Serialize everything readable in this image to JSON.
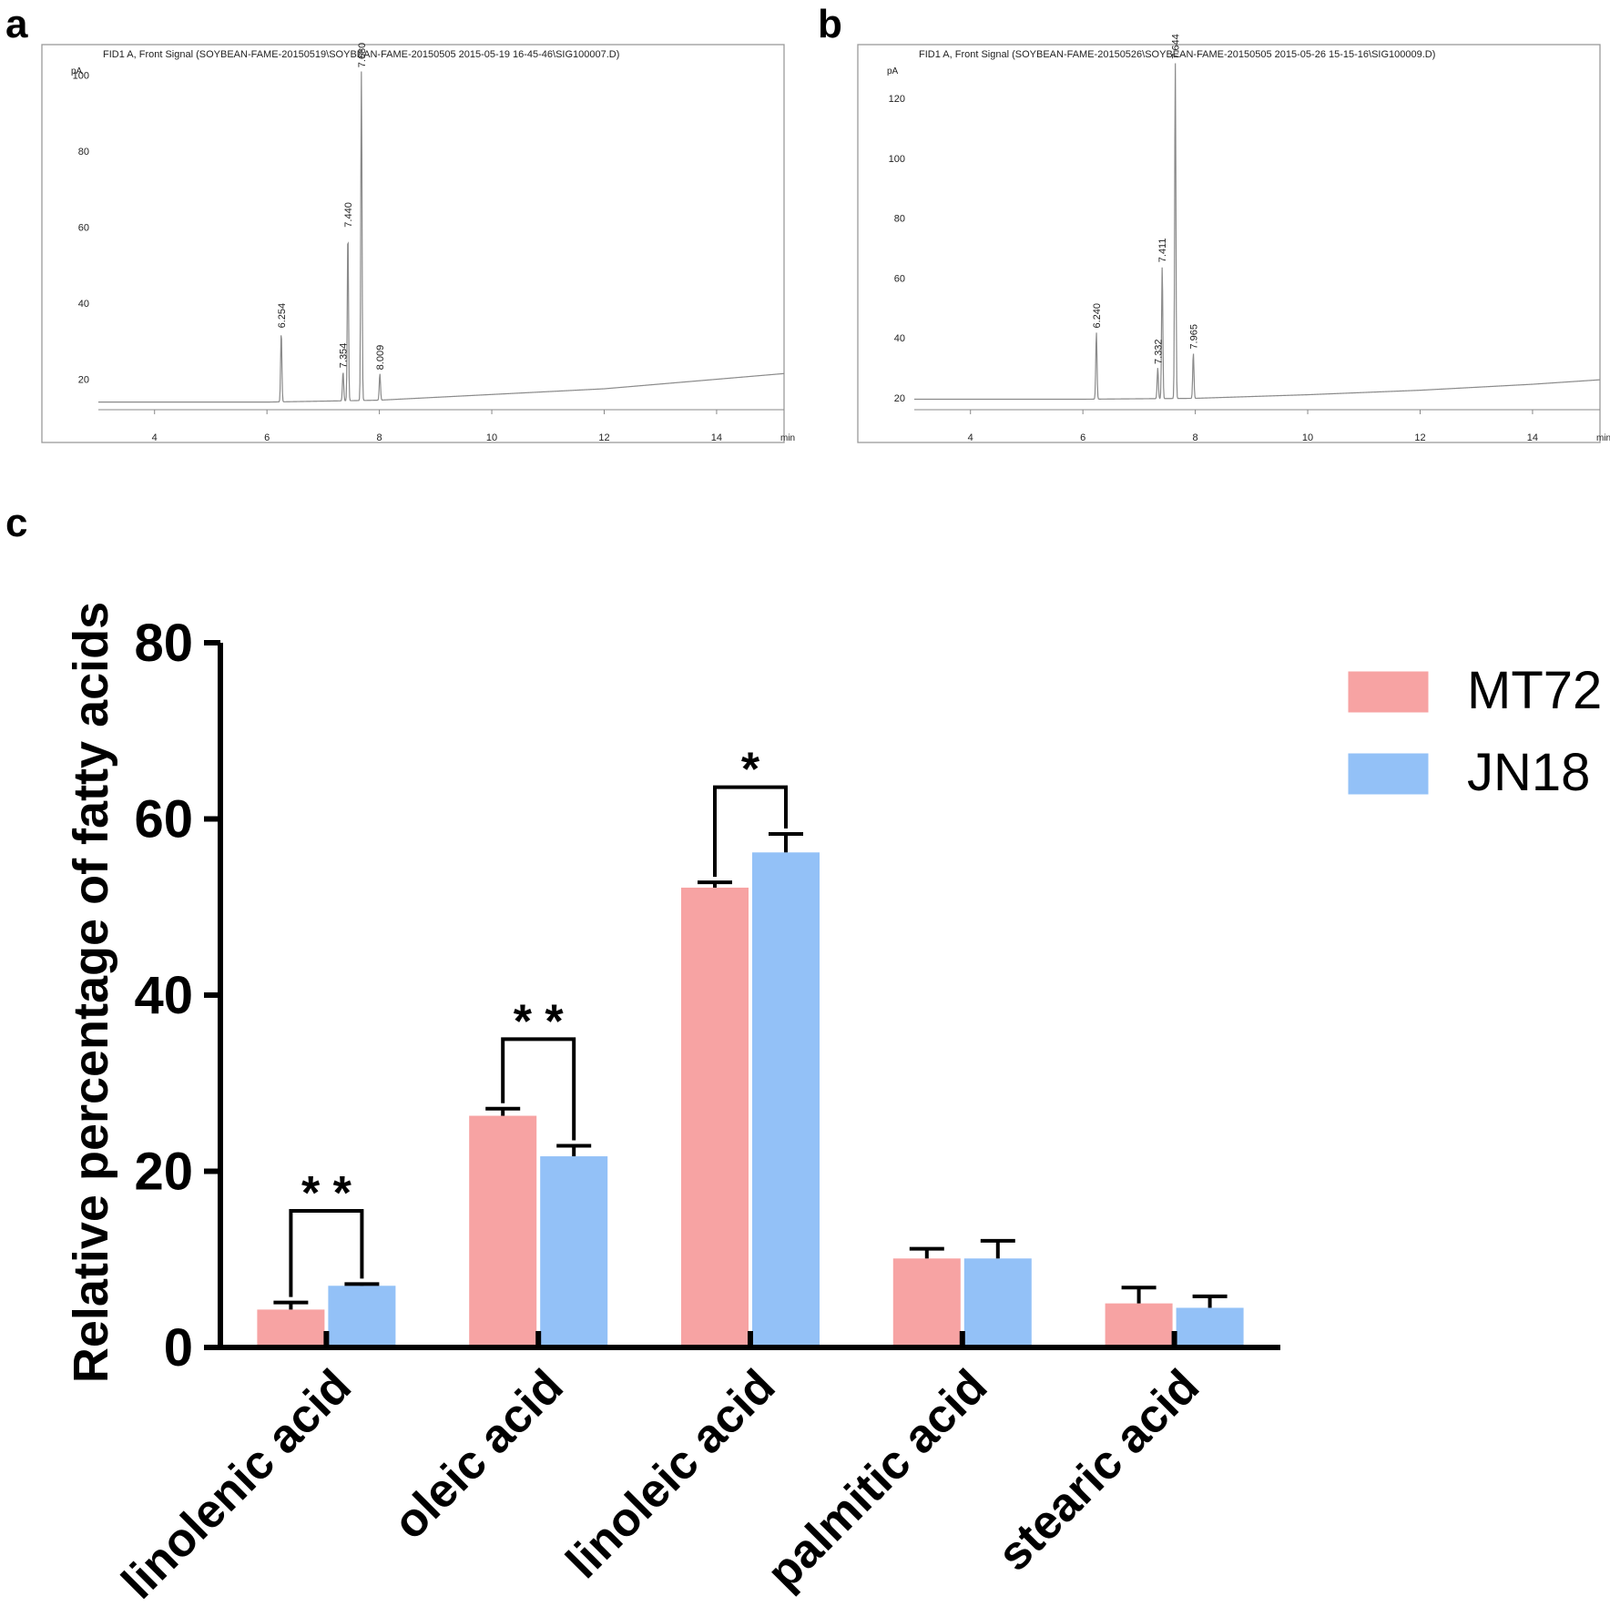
{
  "panels": {
    "a": "a",
    "b": "b",
    "c": "c"
  },
  "chart_data": [
    {
      "type": "line",
      "panel": "a",
      "title": "FID1 A, Front Signal (SOYBEAN-FAME-20150519\\SOYBEAN-FAME-20150505 2015-05-19 16-45-46\\SIG100007.D)",
      "xlabel": "min",
      "ylabel": "pA",
      "xlim": [
        3,
        15.2
      ],
      "ylim": [
        12,
        108
      ],
      "xticks": [
        4,
        6,
        8,
        10,
        12,
        14
      ],
      "yticks": [
        20,
        40,
        60,
        80,
        100
      ],
      "baseline": {
        "x": [
          3,
          6,
          8,
          10,
          12,
          14,
          15.2
        ],
        "y": [
          14,
          14,
          14.5,
          16,
          17.5,
          20,
          21.5
        ]
      },
      "peaks": [
        {
          "label": "6.254",
          "x": 6.254,
          "y": 32.5
        },
        {
          "label": "7.354",
          "x": 7.354,
          "y": 22
        },
        {
          "label": "7.440",
          "x": 7.44,
          "y": 59
        },
        {
          "label": "7.680",
          "x": 7.68,
          "y": 101
        },
        {
          "label": "8.009",
          "x": 8.009,
          "y": 21.5
        }
      ]
    },
    {
      "type": "line",
      "panel": "b",
      "title": "FID1 A, Front Signal (SOYBEAN-FAME-20150526\\SOYBEAN-FAME-20150505 2015-05-26 15-15-16\\SIG100009.D)",
      "xlabel": "min",
      "ylabel": "pA",
      "xlim": [
        3,
        15.2
      ],
      "ylim": [
        16,
        138
      ],
      "xticks": [
        4,
        6,
        8,
        10,
        12,
        14
      ],
      "yticks": [
        20,
        40,
        60,
        80,
        100,
        120
      ],
      "baseline": {
        "x": [
          3,
          6,
          8,
          10,
          12,
          14,
          15.2
        ],
        "y": [
          19.5,
          19.5,
          19.8,
          21,
          22.5,
          24.5,
          26
        ]
      },
      "peaks": [
        {
          "label": "6.240",
          "x": 6.24,
          "y": 42
        },
        {
          "label": "7.332",
          "x": 7.332,
          "y": 30
        },
        {
          "label": "7.411",
          "x": 7.411,
          "y": 64
        },
        {
          "label": "7.644",
          "x": 7.644,
          "y": 132
        },
        {
          "label": "7.965",
          "x": 7.965,
          "y": 35
        }
      ]
    },
    {
      "type": "bar",
      "panel": "c",
      "ylabel": "Relative percentage of fatty acids",
      "xlabel": "",
      "ylim": [
        0,
        80
      ],
      "yticks": [
        0,
        20,
        40,
        60,
        80
      ],
      "categories": [
        "linolenic acid",
        "oleic acid",
        "linoleic acid",
        "palmitic acid",
        "stearic acid"
      ],
      "series": [
        {
          "name": "MT72",
          "color": "#f7a3a3",
          "values": [
            4.3,
            26.3,
            52.2,
            10.1,
            5.0
          ],
          "errors": [
            0.8,
            0.8,
            0.6,
            1.1,
            1.8
          ]
        },
        {
          "name": "JN18",
          "color": "#93c1f7",
          "values": [
            7.0,
            21.7,
            56.2,
            10.1,
            4.5
          ],
          "errors": [
            0.2,
            1.2,
            2.1,
            2.0,
            1.3
          ]
        }
      ],
      "significance": [
        {
          "category": "linolenic acid",
          "label": "* *",
          "bracket_y": 15.5
        },
        {
          "category": "oleic acid",
          "label": "* *",
          "bracket_y": 35.0
        },
        {
          "category": "linoleic acid",
          "label": "*",
          "bracket_y": 63.6
        }
      ],
      "legend_position": "top-right"
    }
  ]
}
